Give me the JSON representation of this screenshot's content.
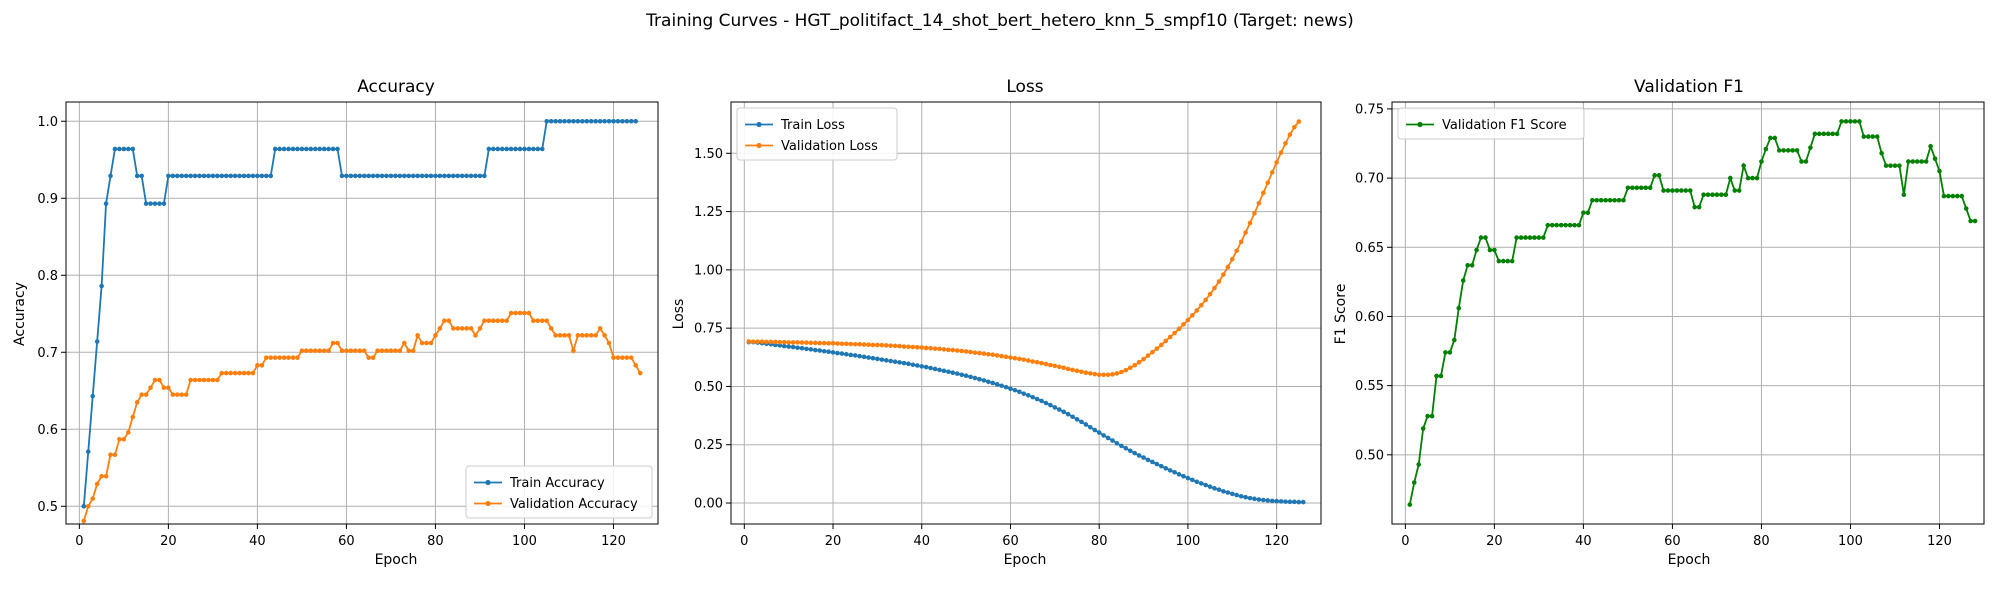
{
  "figure": {
    "title": "Training Curves - HGT_politifact_14_shot_bert_hetero_knn_5_smpf10 (Target: news)"
  },
  "colors": {
    "train": "#1f77b4",
    "validation": "#ff7f0e",
    "f1": "#008000",
    "grid": "#b0b0b0"
  },
  "chart_data": [
    {
      "type": "line",
      "title": "Accuracy",
      "xlabel": "Epoch",
      "ylabel": "Accuracy",
      "xlim": [
        -3,
        130
      ],
      "ylim": [
        0.477,
        1.025
      ],
      "xticks": [
        0,
        20,
        40,
        60,
        80,
        100,
        120
      ],
      "yticks": [
        0.5,
        0.6,
        0.7,
        0.8,
        0.9,
        1.0
      ],
      "ytick_labels": [
        "0.5",
        "0.6",
        "0.7",
        "0.8",
        "0.9",
        "1.0"
      ],
      "grid": true,
      "legend": "lower-right",
      "series": [
        {
          "name": "Train Accuracy",
          "color": "#1f77b4",
          "x_start": 1,
          "values": [
            0.5,
            0.571,
            0.643,
            0.714,
            0.786,
            0.893,
            0.929,
            0.964,
            0.964,
            0.964,
            0.964,
            0.964,
            0.929,
            0.929,
            0.893,
            0.893,
            0.893,
            0.893,
            0.893,
            0.929,
            0.929,
            0.929,
            0.929,
            0.929,
            0.929,
            0.929,
            0.929,
            0.929,
            0.929,
            0.929,
            0.929,
            0.929,
            0.929,
            0.929,
            0.929,
            0.929,
            0.929,
            0.929,
            0.929,
            0.929,
            0.929,
            0.929,
            0.929,
            0.964,
            0.964,
            0.964,
            0.964,
            0.964,
            0.964,
            0.964,
            0.964,
            0.964,
            0.964,
            0.964,
            0.964,
            0.964,
            0.964,
            0.964,
            0.929,
            0.929,
            0.929,
            0.929,
            0.929,
            0.929,
            0.929,
            0.929,
            0.929,
            0.929,
            0.929,
            0.929,
            0.929,
            0.929,
            0.929,
            0.929,
            0.929,
            0.929,
            0.929,
            0.929,
            0.929,
            0.929,
            0.929,
            0.929,
            0.929,
            0.929,
            0.929,
            0.929,
            0.929,
            0.929,
            0.929,
            0.929,
            0.929,
            0.964,
            0.964,
            0.964,
            0.964,
            0.964,
            0.964,
            0.964,
            0.964,
            0.964,
            0.964,
            0.964,
            0.964,
            0.964,
            1.0,
            1.0,
            1.0,
            1.0,
            1.0,
            1.0,
            1.0,
            1.0,
            1.0,
            1.0,
            1.0,
            1.0,
            1.0,
            1.0,
            1.0,
            1.0,
            1.0,
            1.0,
            1.0,
            1.0,
            1.0
          ]
        },
        {
          "name": "Validation Accuracy",
          "color": "#ff7f0e",
          "x_start": 1,
          "values": [
            0.481,
            0.5,
            0.51,
            0.529,
            0.539,
            0.539,
            0.567,
            0.567,
            0.587,
            0.587,
            0.596,
            0.616,
            0.635,
            0.645,
            0.645,
            0.654,
            0.664,
            0.664,
            0.654,
            0.654,
            0.645,
            0.645,
            0.645,
            0.645,
            0.664,
            0.664,
            0.664,
            0.664,
            0.664,
            0.664,
            0.664,
            0.673,
            0.673,
            0.673,
            0.673,
            0.673,
            0.673,
            0.673,
            0.673,
            0.683,
            0.683,
            0.693,
            0.693,
            0.693,
            0.693,
            0.693,
            0.693,
            0.693,
            0.693,
            0.702,
            0.702,
            0.702,
            0.702,
            0.702,
            0.702,
            0.702,
            0.712,
            0.712,
            0.702,
            0.702,
            0.702,
            0.702,
            0.702,
            0.702,
            0.693,
            0.693,
            0.702,
            0.702,
            0.702,
            0.702,
            0.702,
            0.702,
            0.712,
            0.702,
            0.702,
            0.722,
            0.712,
            0.712,
            0.712,
            0.722,
            0.731,
            0.741,
            0.741,
            0.731,
            0.731,
            0.731,
            0.731,
            0.731,
            0.722,
            0.731,
            0.741,
            0.741,
            0.741,
            0.741,
            0.741,
            0.741,
            0.751,
            0.751,
            0.751,
            0.751,
            0.751,
            0.741,
            0.741,
            0.741,
            0.741,
            0.731,
            0.722,
            0.722,
            0.722,
            0.722,
            0.702,
            0.722,
            0.722,
            0.722,
            0.722,
            0.722,
            0.731,
            0.722,
            0.712,
            0.693,
            0.693,
            0.693,
            0.693,
            0.693,
            0.683,
            0.673
          ]
        }
      ]
    },
    {
      "type": "line",
      "title": "Loss",
      "xlabel": "Epoch",
      "ylabel": "Loss",
      "xlim": [
        -3,
        130
      ],
      "ylim": [
        -0.09,
        1.72
      ],
      "xticks": [
        0,
        20,
        40,
        60,
        80,
        100,
        120
      ],
      "yticks": [
        0.0,
        0.25,
        0.5,
        0.75,
        1.0,
        1.25,
        1.5
      ],
      "ytick_labels": [
        "0.00",
        "0.25",
        "0.50",
        "0.75",
        "1.00",
        "1.25",
        "1.50"
      ],
      "grid": true,
      "legend": "upper-left",
      "series": [
        {
          "name": "Train Loss",
          "color": "#1f77b4",
          "x_start": 1,
          "values": [
            0.69,
            0.69,
            0.688,
            0.686,
            0.683,
            0.681,
            0.678,
            0.676,
            0.673,
            0.671,
            0.669,
            0.666,
            0.664,
            0.661,
            0.659,
            0.656,
            0.654,
            0.651,
            0.649,
            0.646,
            0.643,
            0.641,
            0.638,
            0.635,
            0.633,
            0.63,
            0.627,
            0.624,
            0.621,
            0.618,
            0.615,
            0.612,
            0.609,
            0.606,
            0.603,
            0.6,
            0.597,
            0.593,
            0.59,
            0.586,
            0.583,
            0.579,
            0.575,
            0.571,
            0.567,
            0.563,
            0.559,
            0.555,
            0.55,
            0.546,
            0.541,
            0.536,
            0.531,
            0.526,
            0.52,
            0.515,
            0.509,
            0.503,
            0.497,
            0.49,
            0.484,
            0.477,
            0.469,
            0.462,
            0.454,
            0.446,
            0.438,
            0.429,
            0.42,
            0.41,
            0.401,
            0.391,
            0.381,
            0.37,
            0.359,
            0.348,
            0.337,
            0.325,
            0.313,
            0.302,
            0.29,
            0.279,
            0.268,
            0.256,
            0.245,
            0.235,
            0.224,
            0.214,
            0.204,
            0.195,
            0.185,
            0.176,
            0.167,
            0.158,
            0.149,
            0.14,
            0.132,
            0.123,
            0.115,
            0.107,
            0.099,
            0.091,
            0.084,
            0.077,
            0.07,
            0.063,
            0.057,
            0.05,
            0.045,
            0.039,
            0.034,
            0.029,
            0.025,
            0.021,
            0.018,
            0.015,
            0.013,
            0.011,
            0.009,
            0.008,
            0.007,
            0.006,
            0.005,
            0.005,
            0.004,
            0.004
          ]
        },
        {
          "name": "Validation Loss",
          "color": "#ff7f0e",
          "x_start": 1,
          "values": [
            0.693,
            0.692,
            0.692,
            0.692,
            0.691,
            0.691,
            0.691,
            0.69,
            0.69,
            0.689,
            0.689,
            0.689,
            0.688,
            0.688,
            0.687,
            0.687,
            0.686,
            0.686,
            0.685,
            0.685,
            0.684,
            0.683,
            0.683,
            0.682,
            0.681,
            0.681,
            0.68,
            0.679,
            0.678,
            0.678,
            0.677,
            0.676,
            0.675,
            0.674,
            0.673,
            0.671,
            0.67,
            0.669,
            0.668,
            0.667,
            0.665,
            0.664,
            0.662,
            0.661,
            0.659,
            0.657,
            0.656,
            0.654,
            0.652,
            0.65,
            0.648,
            0.645,
            0.643,
            0.641,
            0.638,
            0.636,
            0.633,
            0.63,
            0.627,
            0.624,
            0.621,
            0.618,
            0.615,
            0.611,
            0.607,
            0.604,
            0.6,
            0.596,
            0.592,
            0.588,
            0.584,
            0.58,
            0.575,
            0.571,
            0.567,
            0.563,
            0.559,
            0.556,
            0.553,
            0.55,
            0.55,
            0.55,
            0.552,
            0.556,
            0.562,
            0.57,
            0.58,
            0.591,
            0.604,
            0.617,
            0.632,
            0.647,
            0.662,
            0.678,
            0.695,
            0.712,
            0.729,
            0.747,
            0.766,
            0.785,
            0.805,
            0.826,
            0.848,
            0.871,
            0.896,
            0.922,
            0.95,
            0.98,
            1.012,
            1.046,
            1.082,
            1.12,
            1.16,
            1.201,
            1.243,
            1.286,
            1.33,
            1.374,
            1.418,
            1.461,
            1.503,
            1.543,
            1.58,
            1.612,
            1.636
          ]
        }
      ]
    },
    {
      "type": "line",
      "title": "Validation F1",
      "xlabel": "Epoch",
      "ylabel": "F1 Score",
      "xlim": [
        -3,
        130
      ],
      "ylim": [
        0.45,
        0.755
      ],
      "xticks": [
        0,
        20,
        40,
        60,
        80,
        100,
        120
      ],
      "yticks": [
        0.5,
        0.55,
        0.6,
        0.65,
        0.7,
        0.75
      ],
      "ytick_labels": [
        "0.50",
        "0.55",
        "0.60",
        "0.65",
        "0.70",
        "0.75"
      ],
      "grid": true,
      "legend": "upper-left",
      "series": [
        {
          "name": "Validation F1 Score",
          "color": "#008000",
          "x_start": 1,
          "values": [
            0.464,
            0.48,
            0.493,
            0.519,
            0.528,
            0.528,
            0.557,
            0.557,
            0.574,
            0.574,
            0.583,
            0.606,
            0.626,
            0.637,
            0.637,
            0.648,
            0.657,
            0.657,
            0.648,
            0.648,
            0.64,
            0.64,
            0.64,
            0.64,
            0.657,
            0.657,
            0.657,
            0.657,
            0.657,
            0.657,
            0.657,
            0.666,
            0.666,
            0.666,
            0.666,
            0.666,
            0.666,
            0.666,
            0.666,
            0.675,
            0.675,
            0.684,
            0.684,
            0.684,
            0.684,
            0.684,
            0.684,
            0.684,
            0.684,
            0.693,
            0.693,
            0.693,
            0.693,
            0.693,
            0.693,
            0.702,
            0.702,
            0.691,
            0.691,
            0.691,
            0.691,
            0.691,
            0.691,
            0.691,
            0.679,
            0.679,
            0.688,
            0.688,
            0.688,
            0.688,
            0.688,
            0.688,
            0.7,
            0.691,
            0.691,
            0.709,
            0.7,
            0.7,
            0.7,
            0.712,
            0.721,
            0.729,
            0.729,
            0.72,
            0.72,
            0.72,
            0.72,
            0.72,
            0.712,
            0.712,
            0.722,
            0.732,
            0.732,
            0.732,
            0.732,
            0.732,
            0.732,
            0.741,
            0.741,
            0.741,
            0.741,
            0.741,
            0.73,
            0.73,
            0.73,
            0.73,
            0.718,
            0.709,
            0.709,
            0.709,
            0.709,
            0.688,
            0.712,
            0.712,
            0.712,
            0.712,
            0.712,
            0.723,
            0.714,
            0.705,
            0.687,
            0.687,
            0.687,
            0.687,
            0.687,
            0.678,
            0.669,
            0.669
          ]
        }
      ]
    }
  ]
}
